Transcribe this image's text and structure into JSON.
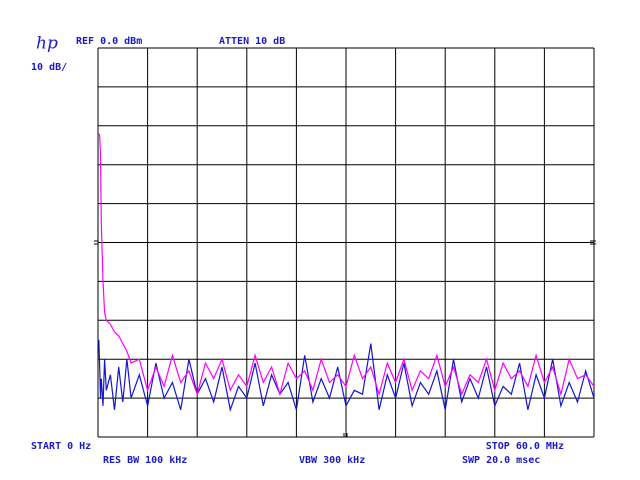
{
  "chart_data": {
    "type": "line",
    "logo": "hp",
    "ref": "REF 0.0 dBm",
    "atten": "ATTEN 10 dB",
    "scale": "10 dB/",
    "start": "START 0 Hz",
    "stop": "STOP 60.0 MHz",
    "res_bw": "RES BW 100 kHz",
    "vbw": "VBW 300 kHz",
    "swp": "SWP 20.0 msec",
    "xlim": [
      0,
      60
    ],
    "ylim": [
      -100,
      0
    ],
    "xticks": [
      0,
      6,
      12,
      18,
      24,
      30,
      36,
      42,
      48,
      54,
      60
    ],
    "yticks": [
      -100,
      -90,
      -80,
      -70,
      -60,
      -50,
      -40,
      -30,
      -20,
      -10,
      0
    ],
    "grid": true,
    "x": [
      0.1,
      0.2,
      0.3,
      0.4,
      0.6,
      0.8,
      1,
      1.5,
      2,
      2.5,
      3,
      3.5,
      4,
      5,
      6,
      7,
      8,
      9,
      10,
      11,
      12,
      13,
      14,
      15,
      16,
      17,
      18,
      19,
      20,
      21,
      22,
      23,
      24,
      25,
      26,
      27,
      28,
      29,
      30,
      31,
      32,
      33,
      34,
      35,
      36,
      37,
      38,
      39,
      40,
      41,
      42,
      43,
      44,
      45,
      46,
      47,
      48,
      49,
      50,
      51,
      52,
      53,
      54,
      55,
      56,
      57,
      58,
      59,
      60
    ],
    "series": [
      {
        "color": "#1515d0",
        "values": [
          -75,
          -82,
          -90,
          -85,
          -92,
          -80,
          -88,
          -84,
          -93,
          -82,
          -91,
          -80,
          -90,
          -84,
          -92,
          -81,
          -90,
          -86,
          -93,
          -80,
          -89,
          -85,
          -91,
          -82,
          -93,
          -87,
          -90,
          -81,
          -92,
          -84,
          -89,
          -86,
          -93,
          -79,
          -91,
          -85,
          -90,
          -82,
          -92,
          -88,
          -89,
          -76,
          -93,
          -84,
          -90,
          -81,
          -92,
          -86,
          -89,
          -83,
          -93,
          -80,
          -91,
          -85,
          -90,
          -82,
          -92,
          -87,
          -89,
          -81,
          -93,
          -84,
          -90,
          -80,
          -92,
          -86,
          -91,
          -83,
          -90
        ]
      },
      {
        "color": "#ff00ff",
        "values": [
          -22,
          -22.5,
          -28,
          -45,
          -60,
          -68,
          -70,
          -71,
          -73,
          -74,
          -76,
          -78,
          -81,
          -80,
          -88,
          -82,
          -87,
          -79,
          -86,
          -83,
          -89,
          -81,
          -85,
          -80,
          -88,
          -84,
          -87,
          -79,
          -86,
          -82,
          -89,
          -81,
          -85,
          -83,
          -88,
          -80,
          -86,
          -84,
          -87,
          -79,
          -85,
          -82,
          -89,
          -81,
          -86,
          -80,
          -88,
          -83,
          -85,
          -79,
          -87,
          -82,
          -89,
          -84,
          -86,
          -80,
          -88,
          -81,
          -85,
          -83,
          -87,
          -79,
          -86,
          -82,
          -89,
          -80,
          -85,
          -84,
          -87
        ]
      }
    ]
  }
}
